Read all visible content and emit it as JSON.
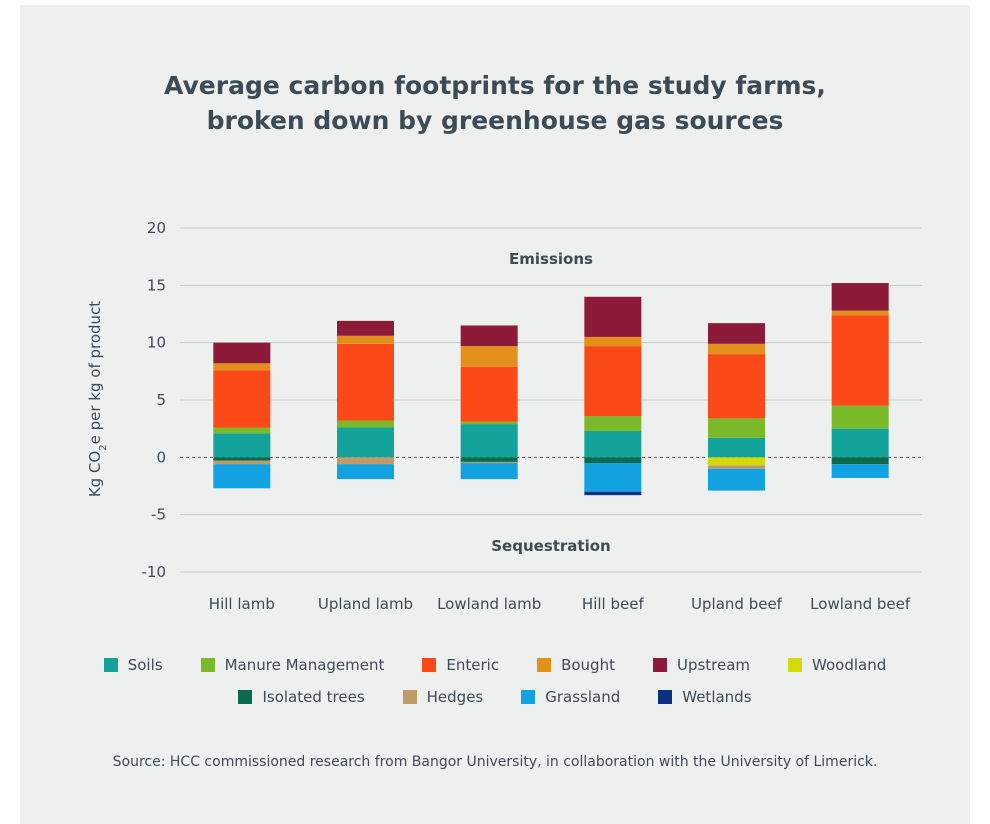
{
  "title_line1": "Average carbon footprints for the study farms,",
  "title_line2": "broken down by greenhouse gas sources",
  "source": "Source: HCC commissioned research from Bangor University, in collaboration with the University of Limerick.",
  "chart_data": {
    "type": "bar",
    "stacked": true,
    "title": "Average carbon footprints for the study farms, broken down by greenhouse gas sources",
    "ylabel": "Kg CO2e per kg of product",
    "xlabel": "",
    "ylim": [
      -10,
      20
    ],
    "yticks": [
      20,
      15,
      10,
      5,
      0,
      -5,
      -10
    ],
    "grid": true,
    "legend_position": "bottom",
    "annotations": [
      "Emissions",
      "Sequestration"
    ],
    "categories": [
      "Hill lamb",
      "Upland lamb",
      "Lowland lamb",
      "Hill beef",
      "Upland beef",
      "Lowland beef"
    ],
    "series": [
      {
        "name": "Soils",
        "color": "#14a39a",
        "values": [
          2.1,
          2.6,
          2.9,
          2.3,
          1.7,
          2.5
        ]
      },
      {
        "name": "Manure Management",
        "color": "#7ab929",
        "values": [
          0.5,
          0.6,
          0.2,
          1.3,
          1.7,
          2.0
        ]
      },
      {
        "name": "Enteric",
        "color": "#fb4a18",
        "values": [
          5.0,
          6.7,
          4.8,
          6.1,
          5.6,
          7.9
        ]
      },
      {
        "name": "Bought",
        "color": "#e38f1c",
        "values": [
          0.6,
          0.7,
          1.8,
          0.8,
          0.9,
          0.4
        ]
      },
      {
        "name": "Upstream",
        "color": "#8e1a3a",
        "values": [
          1.8,
          1.3,
          1.8,
          3.5,
          1.8,
          2.4
        ]
      },
      {
        "name": "Woodland",
        "color": "#d4d90a",
        "values": [
          0,
          0,
          0,
          0,
          -0.7,
          0
        ]
      },
      {
        "name": "Isolated trees",
        "color": "#0c6b4c",
        "values": [
          -0.3,
          0,
          -0.4,
          -0.5,
          0,
          -0.6
        ]
      },
      {
        "name": "Hedges",
        "color": "#bf9b67",
        "values": [
          -0.3,
          -0.6,
          -0.1,
          0,
          -0.3,
          0
        ]
      },
      {
        "name": "Grassland",
        "color": "#12a1e1",
        "values": [
          -2.1,
          -1.3,
          -1.4,
          -2.5,
          -1.9,
          -1.2
        ]
      },
      {
        "name": "Wetlands",
        "color": "#0b3181",
        "values": [
          0,
          0,
          0,
          -0.3,
          0,
          0
        ]
      }
    ]
  }
}
